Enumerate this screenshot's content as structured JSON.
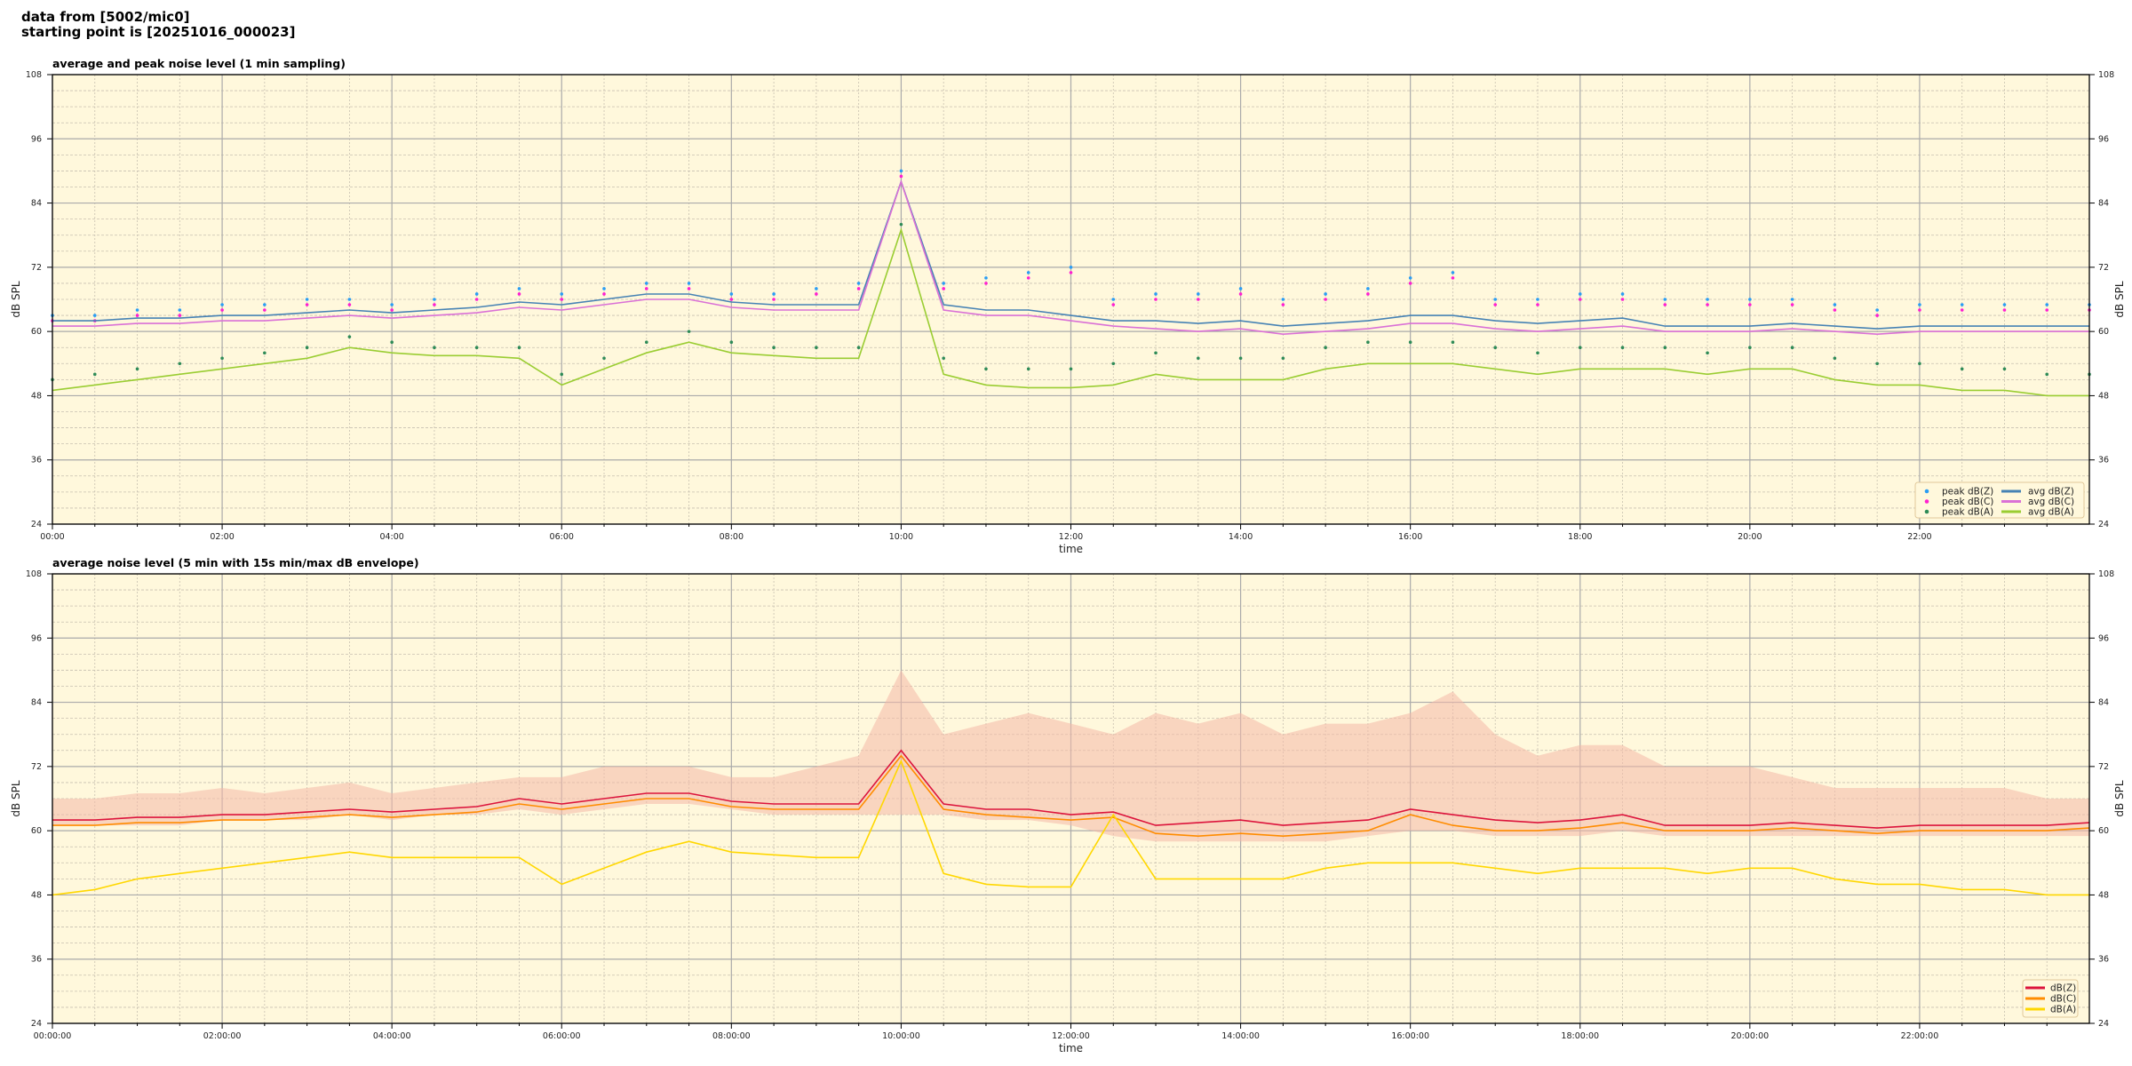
{
  "header": {
    "line1": "data from [5002/mic0]",
    "line2": "starting point is [20251016_000023]"
  },
  "colors": {
    "background": "#fff8dc",
    "peakZ": "#2a9df4",
    "peakC": "#ff1fd0",
    "peakA": "#2e8b57",
    "avgZ": "#4682b4",
    "avgC": "#da70d6",
    "avgA": "#9acd32",
    "dBZ": "#dc143c",
    "dBC": "#ff8c00",
    "dBA": "#ffd700",
    "envelope": "#f4b8a8"
  },
  "chart_data": [
    {
      "type": "line+scatter",
      "title": "average and peak noise level (1 min sampling)",
      "xlabel": "time",
      "ylabel": "dB SPL",
      "ylim": [
        24,
        108
      ],
      "xlim_hours": [
        0,
        24
      ],
      "yticks": [
        "24",
        "36",
        "48",
        "60",
        "72",
        "84",
        "96",
        "108"
      ],
      "xticks": [
        "00:00",
        "02:00",
        "04:00",
        "06:00",
        "08:00",
        "10:00",
        "12:00",
        "14:00",
        "16:00",
        "18:00",
        "20:00",
        "22:00"
      ],
      "grid": true,
      "legend_placement": "lower-right",
      "x_hours_step": 0.5,
      "series": [
        {
          "name": "peak dB(Z)",
          "kind": "scatter",
          "color": "#2a9df4",
          "values": [
            63,
            63,
            64,
            64,
            65,
            65,
            66,
            66,
            65,
            66,
            67,
            68,
            67,
            68,
            69,
            69,
            67,
            67,
            68,
            69,
            90,
            69,
            70,
            71,
            72,
            66,
            67,
            67,
            68,
            66,
            67,
            68,
            70,
            71,
            66,
            66,
            67,
            67,
            66,
            66,
            66,
            66,
            65,
            64,
            65,
            65,
            65,
            65,
            65
          ]
        },
        {
          "name": "peak dB(C)",
          "kind": "scatter",
          "color": "#ff1fd0",
          "values": [
            62,
            62,
            63,
            63,
            64,
            64,
            65,
            65,
            64,
            65,
            66,
            67,
            66,
            67,
            68,
            68,
            66,
            66,
            67,
            68,
            89,
            68,
            69,
            70,
            71,
            65,
            66,
            66,
            67,
            65,
            66,
            67,
            69,
            70,
            65,
            65,
            66,
            66,
            65,
            65,
            65,
            65,
            64,
            63,
            64,
            64,
            64,
            64,
            64
          ]
        },
        {
          "name": "peak dB(A)",
          "kind": "scatter",
          "color": "#2e8b57",
          "values": [
            51,
            52,
            53,
            54,
            55,
            56,
            57,
            59,
            58,
            57,
            57,
            57,
            52,
            55,
            58,
            60,
            58,
            57,
            57,
            57,
            80,
            55,
            53,
            53,
            53,
            54,
            56,
            55,
            55,
            55,
            57,
            58,
            58,
            58,
            57,
            56,
            57,
            57,
            57,
            56,
            57,
            57,
            55,
            54,
            54,
            53,
            53,
            52,
            52
          ]
        },
        {
          "name": "avg dB(Z)",
          "kind": "line",
          "color": "#4682b4",
          "values": [
            62,
            62,
            62.5,
            62.5,
            63,
            63,
            63.5,
            64,
            63.5,
            64,
            64.5,
            65.5,
            65,
            66,
            67,
            67,
            65.5,
            65,
            65,
            65,
            88,
            65,
            64,
            64,
            63,
            62,
            62,
            61.5,
            62,
            61,
            61.5,
            62,
            63,
            63,
            62,
            61.5,
            62,
            62.5,
            61,
            61,
            61,
            61.5,
            61,
            60.5,
            61,
            61,
            61,
            61,
            61
          ]
        },
        {
          "name": "avg dB(C)",
          "kind": "line",
          "color": "#da70d6",
          "values": [
            61,
            61,
            61.5,
            61.5,
            62,
            62,
            62.5,
            63,
            62.5,
            63,
            63.5,
            64.5,
            64,
            65,
            66,
            66,
            64.5,
            64,
            64,
            64,
            88,
            64,
            63,
            63,
            62,
            61,
            60.5,
            60,
            60.5,
            59.5,
            60,
            60.5,
            61.5,
            61.5,
            60.5,
            60,
            60.5,
            61,
            60,
            60,
            60,
            60.5,
            60,
            59.5,
            60,
            60,
            60,
            60,
            60
          ]
        },
        {
          "name": "avg dB(A)",
          "kind": "line",
          "color": "#9acd32",
          "values": [
            49,
            50,
            51,
            52,
            53,
            54,
            55,
            57,
            56,
            55.5,
            55.5,
            55,
            50,
            53,
            56,
            58,
            56,
            55.5,
            55,
            55,
            79,
            52,
            50,
            49.5,
            49.5,
            50,
            52,
            51,
            51,
            51,
            53,
            54,
            54,
            54,
            53,
            52,
            53,
            53,
            53,
            52,
            53,
            53,
            51,
            50,
            50,
            49,
            49,
            48,
            48
          ]
        }
      ]
    },
    {
      "type": "line",
      "title": "average noise level (5 min with 15s min/max dB envelope)",
      "xlabel": "time",
      "ylabel": "dB SPL",
      "ylim": [
        24,
        108
      ],
      "xlim_hours": [
        0,
        24
      ],
      "yticks": [
        "24",
        "36",
        "48",
        "60",
        "72",
        "84",
        "96",
        "108"
      ],
      "xticks": [
        "00:00:00",
        "02:00:00",
        "04:00:00",
        "06:00:00",
        "08:00:00",
        "10:00:00",
        "12:00:00",
        "14:00:00",
        "16:00:00",
        "18:00:00",
        "20:00:00",
        "22:00:00"
      ],
      "grid": true,
      "legend_placement": "lower-right",
      "x_hours_step": 0.5,
      "envelope": {
        "color": "#f4b8a8",
        "max": [
          66,
          66,
          67,
          67,
          68,
          67,
          68,
          69,
          67,
          68,
          69,
          70,
          70,
          72,
          72,
          72,
          70,
          70,
          72,
          74,
          90,
          78,
          80,
          82,
          80,
          78,
          82,
          80,
          82,
          78,
          80,
          80,
          82,
          86,
          78,
          74,
          76,
          76,
          72,
          72,
          72,
          70,
          68,
          68,
          68,
          68,
          68,
          66,
          66
        ],
        "min": [
          61,
          61,
          61,
          61,
          62,
          62,
          62,
          63,
          62,
          63,
          63,
          64,
          63,
          64,
          65,
          65,
          64,
          63,
          63,
          63,
          63,
          63,
          62,
          62,
          61,
          59,
          58,
          58,
          58,
          58,
          58,
          59,
          60,
          60,
          59,
          59,
          59,
          60,
          59,
          59,
          59,
          59,
          59,
          59,
          59,
          59,
          59,
          59,
          59
        ]
      },
      "series": [
        {
          "name": "dB(Z)",
          "color": "#dc143c",
          "values": [
            62,
            62,
            62.5,
            62.5,
            63,
            63,
            63.5,
            64,
            63.5,
            64,
            64.5,
            66,
            65,
            66,
            67,
            67,
            65.5,
            65,
            65,
            65,
            75,
            65,
            64,
            64,
            63,
            63.5,
            61,
            61.5,
            62,
            61,
            61.5,
            62,
            64,
            63,
            62,
            61.5,
            62,
            63,
            61,
            61,
            61,
            61.5,
            61,
            60.5,
            61,
            61,
            61,
            61,
            61.5
          ]
        },
        {
          "name": "dB(C)",
          "color": "#ff8c00",
          "values": [
            61,
            61,
            61.5,
            61.5,
            62,
            62,
            62.5,
            63,
            62.5,
            63,
            63.5,
            65,
            64,
            65,
            66,
            66,
            64.5,
            64,
            64,
            64,
            74,
            64,
            63,
            62.5,
            62,
            62.5,
            59.5,
            59,
            59.5,
            59,
            59.5,
            60,
            63,
            61,
            60,
            60,
            60.5,
            61.5,
            60,
            60,
            60,
            60.5,
            60,
            59.5,
            60,
            60,
            60,
            60,
            60.5
          ]
        },
        {
          "name": "dB(A)",
          "color": "#ffd700",
          "values": [
            48,
            49,
            51,
            52,
            53,
            54,
            55,
            56,
            55,
            55,
            55,
            55,
            50,
            53,
            56,
            58,
            56,
            55.5,
            55,
            55,
            73,
            52,
            50,
            49.5,
            49.5,
            63,
            51,
            51,
            51,
            51,
            53,
            54,
            54,
            54,
            53,
            52,
            53,
            53,
            53,
            52,
            53,
            53,
            51,
            50,
            50,
            49,
            49,
            48,
            48
          ]
        }
      ]
    }
  ]
}
